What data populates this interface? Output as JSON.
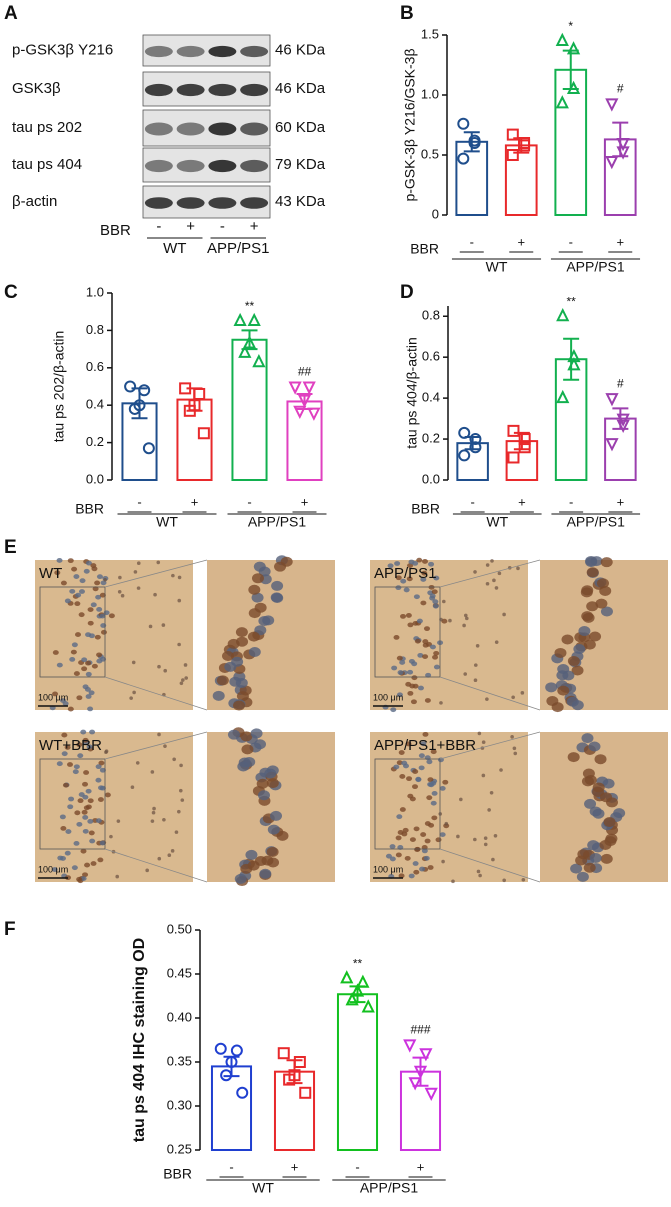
{
  "blot": {
    "panel": "A",
    "rows": [
      {
        "label": "p-GSK3β Y216",
        "size": "46 KDa"
      },
      {
        "label": "GSK3β",
        "size": "46 KDa"
      },
      {
        "label": "tau ps 202",
        "size": "60 KDa"
      },
      {
        "label": "tau ps 404",
        "size": "79 KDa"
      },
      {
        "label": "β-actin",
        "size": "43 KDa"
      }
    ],
    "row_label": "BBR",
    "categories": [
      "-",
      "+",
      "-",
      "+"
    ],
    "groups": [
      "WT",
      "APP/PS1"
    ]
  },
  "ihc": {
    "panel": "E",
    "images": [
      "WT",
      "APP/PS1",
      "WT+BBR",
      "APP/PS1+BBR"
    ],
    "scale_bar": "100 μm"
  },
  "chart_data": [
    {
      "type": "bar",
      "panel": "B",
      "ylabel": "p-GSK-3β Y216/GSK-3β",
      "row_label": "BBR",
      "categories": [
        "-",
        "+",
        "-",
        "+"
      ],
      "groups": [
        "WT",
        "APP/PS1"
      ],
      "values": [
        0.61,
        0.58,
        1.21,
        0.63
      ],
      "errors": [
        0.08,
        0.06,
        0.16,
        0.14
      ],
      "points": [
        [
          0.76,
          0.62,
          0.6,
          0.47
        ],
        [
          0.67,
          0.6,
          0.58,
          0.5
        ],
        [
          1.45,
          1.38,
          1.05,
          0.93
        ],
        [
          0.93,
          0.6,
          0.53,
          0.45
        ]
      ],
      "annotations": [
        null,
        null,
        "*",
        "#"
      ],
      "colors": [
        "#1f4e8c",
        "#e8292b",
        "#12b04f",
        "#9b3fae"
      ],
      "markers": [
        "circle",
        "square",
        "triangle-up",
        "triangle-down"
      ],
      "ylim": [
        0,
        1.5
      ],
      "yticks": [
        0,
        0.5,
        {
          "value": 1,
          "label": "1.0"
        },
        1.5
      ]
    },
    {
      "type": "bar",
      "panel": "C",
      "ylabel": "tau ps 202/β-actin",
      "row_label": "BBR",
      "categories": [
        "-",
        "+",
        "-",
        "+"
      ],
      "groups": [
        "WT",
        "APP/PS1"
      ],
      "values": [
        0.41,
        0.43,
        0.75,
        0.42
      ],
      "errors": [
        0.08,
        0.06,
        0.05,
        0.04
      ],
      "points": [
        [
          0.5,
          0.48,
          0.4,
          0.38,
          0.17
        ],
        [
          0.49,
          0.46,
          0.4,
          0.37,
          0.25
        ],
        [
          0.85,
          0.85,
          0.73,
          0.68,
          0.63
        ],
        [
          0.5,
          0.5,
          0.43,
          0.37,
          0.36
        ]
      ],
      "annotations": [
        null,
        null,
        "**",
        "##"
      ],
      "colors": [
        "#1f4e8c",
        "#e8292b",
        "#12b04f",
        "#e040c0"
      ],
      "markers": [
        "circle",
        "square",
        "triangle-up",
        "triangle-down"
      ],
      "ylim": [
        0,
        1
      ],
      "yticks": [
        {
          "value": 0,
          "label": "0.0"
        },
        0.2,
        0.4,
        0.6,
        0.8,
        {
          "value": 1,
          "label": "1.0"
        }
      ]
    },
    {
      "type": "bar",
      "panel": "D",
      "ylabel": "tau ps 404/β-actin",
      "row_label": "BBR",
      "categories": [
        "-",
        "+",
        "-",
        "+"
      ],
      "groups": [
        "WT",
        "APP/PS1"
      ],
      "values": [
        0.18,
        0.19,
        0.59,
        0.3
      ],
      "errors": [
        0.03,
        0.04,
        0.1,
        0.05
      ],
      "points": [
        [
          0.23,
          0.2,
          0.16,
          0.12
        ],
        [
          0.24,
          0.2,
          0.16,
          0.11
        ],
        [
          0.8,
          0.6,
          0.56,
          0.4
        ],
        [
          0.4,
          0.3,
          0.27,
          0.18
        ]
      ],
      "annotations": [
        null,
        null,
        "**",
        "#"
      ],
      "colors": [
        "#1f4e8c",
        "#e8292b",
        "#12b04f",
        "#9b3fae"
      ],
      "markers": [
        "circle",
        "square",
        "triangle-up",
        "triangle-down"
      ],
      "ylim": [
        0,
        0.85
      ],
      "yticks": [
        {
          "value": 0,
          "label": "0.0"
        },
        0.2,
        0.4,
        0.6,
        0.8
      ]
    },
    {
      "type": "bar",
      "panel": "F",
      "ylabel": "tau ps 404 IHC staining OD",
      "row_label": "BBR",
      "categories": [
        "-",
        "+",
        "-",
        "+"
      ],
      "groups": [
        "WT",
        "APP/PS1"
      ],
      "values": [
        0.345,
        0.339,
        0.427,
        0.339
      ],
      "errors": [
        0.011,
        0.013,
        0.009,
        0.016
      ],
      "points": [
        [
          0.365,
          0.363,
          0.35,
          0.335,
          0.315
        ],
        [
          0.36,
          0.35,
          0.335,
          0.33,
          0.315
        ],
        [
          0.445,
          0.44,
          0.43,
          0.42,
          0.412
        ],
        [
          0.37,
          0.36,
          0.34,
          0.327,
          0.315
        ]
      ],
      "annotations": [
        null,
        null,
        "**",
        "###"
      ],
      "colors": [
        "#1f3fd0",
        "#e8292b",
        "#12c01f",
        "#cc33dd"
      ],
      "markers": [
        "circle",
        "square",
        "triangle-up",
        "triangle-down"
      ],
      "ylim": [
        0.25,
        0.5
      ],
      "yticks": [
        0.25,
        {
          "value": 0.3,
          "label": "0.30"
        },
        0.35,
        {
          "value": 0.4,
          "label": "0.40"
        },
        0.45,
        {
          "value": 0.5,
          "label": "0.50"
        }
      ]
    }
  ]
}
